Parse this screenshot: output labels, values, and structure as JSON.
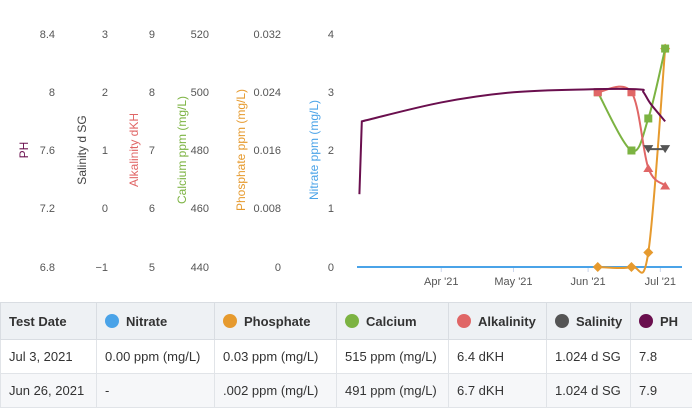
{
  "chart_data": {
    "type": "line",
    "x_ticks": [
      "Apr '21",
      "May '21",
      "Jun '21",
      "Jul '21"
    ],
    "y_axes": [
      {
        "id": "ph",
        "title": "PH",
        "color": "#6a0f4e",
        "ticks": [
          "8.4",
          "8",
          "7.6",
          "7.2",
          "6.8"
        ],
        "range": [
          6.8,
          8.4
        ]
      },
      {
        "id": "salinity",
        "title": "Salinity d SG",
        "color": "#444444",
        "ticks": [
          "3",
          "2",
          "1",
          "0",
          "−1"
        ],
        "range": [
          -1,
          3
        ]
      },
      {
        "id": "alkalinity",
        "title": "Alkalinity dKH",
        "color": "#e06666",
        "ticks": [
          "9",
          "8",
          "7",
          "6",
          "5"
        ],
        "range": [
          5,
          9
        ]
      },
      {
        "id": "calcium",
        "title": "Calcium ppm (mg/L)",
        "color": "#7cb342",
        "ticks": [
          "520",
          "500",
          "480",
          "460",
          "440"
        ],
        "range": [
          440,
          520
        ]
      },
      {
        "id": "phosphate",
        "title": "Phosphate ppm (mg/L)",
        "color": "#e69a2e",
        "ticks": [
          "0.032",
          "0.024",
          "0.016",
          "0.008",
          "0"
        ],
        "range": [
          0,
          0.032
        ]
      },
      {
        "id": "nitrate",
        "title": "Nitrate ppm (mg/L)",
        "color": "#4aa3e8",
        "ticks": [
          "4",
          "3",
          "2",
          "1",
          "0"
        ],
        "range": [
          0,
          4
        ]
      }
    ],
    "x_range": [
      "2021-02-25",
      "2021-07-10"
    ],
    "series": [
      {
        "name": "PH",
        "axis": "ph",
        "color": "#6a0f4e",
        "marker": "none",
        "points": [
          [
            "2021-02-26",
            7.3
          ],
          [
            "2021-02-27",
            7.8
          ],
          [
            "2021-04-01",
            7.93
          ],
          [
            "2021-05-01",
            8.0
          ],
          [
            "2021-06-01",
            8.02
          ],
          [
            "2021-06-22",
            8.02
          ],
          [
            "2021-06-24",
            8.0
          ],
          [
            "2021-06-27",
            7.92
          ],
          [
            "2021-07-03",
            7.8
          ]
        ]
      },
      {
        "name": "Salinity",
        "axis": "salinity",
        "color": "#555555",
        "marker": "triangle-down",
        "points": [
          [
            "2021-06-26",
            1.024
          ],
          [
            "2021-07-03",
            1.024
          ]
        ]
      },
      {
        "name": "Alkalinity",
        "axis": "alkalinity",
        "color": "#e06666",
        "marker": "square",
        "points": [
          [
            "2021-06-05",
            8.0
          ],
          [
            "2021-06-19",
            8.0
          ],
          [
            "2021-06-26",
            6.7
          ],
          [
            "2021-07-03",
            6.4
          ]
        ]
      },
      {
        "name": "Calcium",
        "axis": "calcium",
        "color": "#7cb342",
        "marker": "square",
        "points": [
          [
            "2021-06-05",
            500
          ],
          [
            "2021-06-19",
            480
          ],
          [
            "2021-06-26",
            491
          ],
          [
            "2021-07-03",
            515
          ]
        ]
      },
      {
        "name": "Phosphate",
        "axis": "phosphate",
        "color": "#e69a2e",
        "marker": "diamond",
        "points": [
          [
            "2021-06-05",
            0
          ],
          [
            "2021-06-19",
            0
          ],
          [
            "2021-06-26",
            0.002
          ],
          [
            "2021-07-03",
            0.03
          ]
        ]
      },
      {
        "name": "Nitrate",
        "axis": "nitrate",
        "color": "#4aa3e8",
        "marker": "none",
        "points": [
          [
            "2021-02-25",
            0
          ],
          [
            "2021-07-10",
            0
          ]
        ]
      }
    ]
  },
  "table": {
    "headers": [
      {
        "label": "Test Date",
        "dot": ""
      },
      {
        "label": "Nitrate",
        "dot": "#4aa3e8"
      },
      {
        "label": "Phosphate",
        "dot": "#e69a2e"
      },
      {
        "label": "Calcium",
        "dot": "#7cb342"
      },
      {
        "label": "Alkalinity",
        "dot": "#e06666"
      },
      {
        "label": "Salinity",
        "dot": "#555555"
      },
      {
        "label": "PH",
        "dot": "#6a0f4e"
      }
    ],
    "rows": [
      [
        "Jul 3, 2021",
        "0.00 ppm (mg/L)",
        "0.03 ppm (mg/L)",
        "515 ppm (mg/L)",
        "6.4 dKH",
        "1.024 d SG",
        "7.8"
      ],
      [
        "Jun 26, 2021",
        "-",
        ".002 ppm (mg/L)",
        "491 ppm (mg/L)",
        "6.7 dKH",
        "1.024 d SG",
        "7.9"
      ]
    ]
  }
}
